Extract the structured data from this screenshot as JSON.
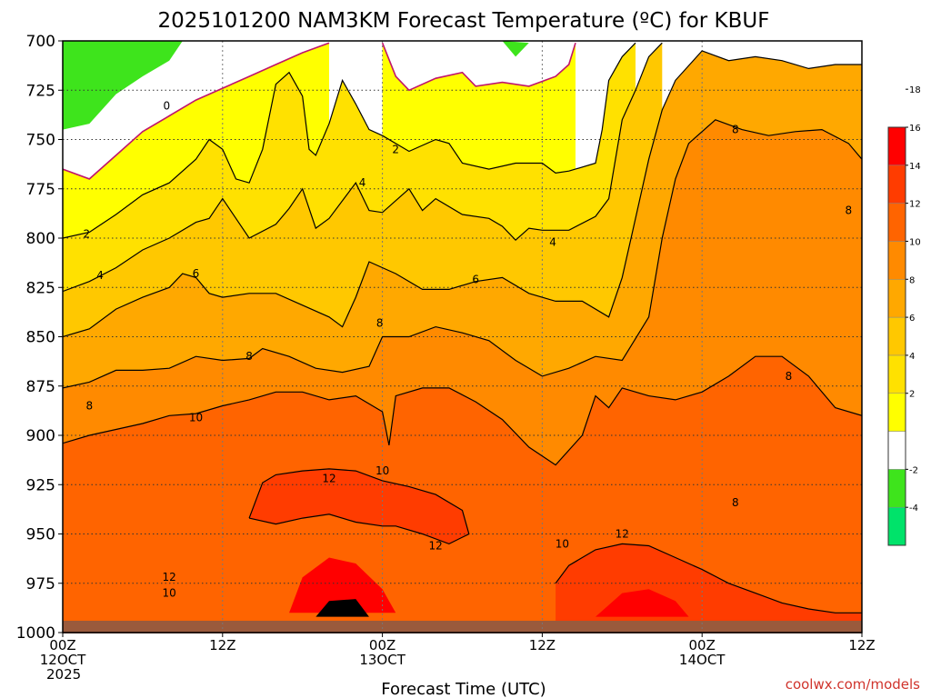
{
  "colors": {
    "bands": [
      "#00e36a",
      "#3ee41c",
      "#ffffff",
      "#ffff00",
      "#ffe100",
      "#ffc800",
      "#ffa800",
      "#ff8a00",
      "#ff6400",
      "#ff3c00",
      "#ff0000"
    ],
    "ground": "#9a5a3c",
    "zero_line": "#c0146c",
    "credit": "#d0342c"
  },
  "chart_data": {
    "type": "heatmap",
    "title": "2025101200 NAM3KM Forecast Temperature (ºC) for KBUF",
    "xlabel": "Forecast Time (UTC)",
    "ylabel": "",
    "credit": "coolwx.com/models",
    "x_range": [
      0,
      60
    ],
    "y_range": [
      700,
      1000
    ],
    "y_axis": "pressure (hPa), increasing downward",
    "grid": true,
    "y_ticks": [
      "700",
      "725",
      "750",
      "775",
      "800",
      "825",
      "850",
      "875",
      "900",
      "925",
      "950",
      "975",
      "1000"
    ],
    "x_ticks": [
      {
        "hour": 0,
        "lines": [
          "00Z",
          "12OCT",
          "2025"
        ]
      },
      {
        "hour": 12,
        "lines": [
          "12Z"
        ]
      },
      {
        "hour": 24,
        "lines": [
          "00Z",
          "13OCT"
        ]
      },
      {
        "hour": 36,
        "lines": [
          "12Z"
        ]
      },
      {
        "hour": 48,
        "lines": [
          "00Z",
          "14OCT"
        ]
      },
      {
        "hour": 60,
        "lines": [
          "12Z"
        ]
      }
    ],
    "colorbar": {
      "levels": [
        -6,
        -4,
        -2,
        0,
        2,
        4,
        6,
        8,
        10,
        12,
        14,
        16,
        18,
        20
      ],
      "tick_labels": [
        "-4",
        "-2",
        "2",
        "4",
        "6",
        "8",
        "10",
        "12",
        "14",
        "16",
        "18"
      ]
    },
    "contours": [
      {
        "level": 0,
        "points": [
          [
            0,
            765
          ],
          [
            2,
            770
          ],
          [
            4,
            758
          ],
          [
            6,
            746
          ],
          [
            8,
            738
          ],
          [
            10,
            730
          ],
          [
            12,
            724
          ],
          [
            14,
            718
          ],
          [
            16,
            712
          ],
          [
            18,
            706
          ],
          [
            20,
            701
          ]
        ]
      },
      {
        "level": 0,
        "points": [
          [
            24,
            701
          ],
          [
            25,
            718
          ],
          [
            26,
            725
          ],
          [
            28,
            719
          ],
          [
            30,
            716
          ],
          [
            31,
            723
          ],
          [
            33,
            721
          ],
          [
            35,
            723
          ],
          [
            37,
            718
          ],
          [
            38,
            712
          ],
          [
            38.5,
            701
          ]
        ]
      },
      {
        "level": 2,
        "points": [
          [
            0,
            800
          ],
          [
            2,
            797
          ],
          [
            4,
            788
          ],
          [
            6,
            778
          ],
          [
            8,
            772
          ],
          [
            10,
            760
          ],
          [
            11,
            750
          ],
          [
            12,
            755
          ],
          [
            13,
            770
          ],
          [
            14,
            772
          ],
          [
            15,
            755
          ],
          [
            16,
            722
          ],
          [
            17,
            716
          ],
          [
            18,
            728
          ],
          [
            18.5,
            755
          ],
          [
            19,
            758
          ],
          [
            20,
            742
          ],
          [
            21,
            720
          ],
          [
            22,
            732
          ],
          [
            23,
            745
          ],
          [
            24,
            748
          ],
          [
            26,
            756
          ],
          [
            28,
            750
          ],
          [
            29,
            752
          ],
          [
            30,
            762
          ],
          [
            32,
            765
          ],
          [
            34,
            762
          ],
          [
            36,
            762
          ],
          [
            37,
            767
          ],
          [
            38,
            766
          ],
          [
            40,
            762
          ],
          [
            40.5,
            745
          ],
          [
            41,
            720
          ],
          [
            42,
            708
          ],
          [
            43,
            701
          ]
        ]
      },
      {
        "level": 4,
        "points": [
          [
            0,
            827
          ],
          [
            2,
            822
          ],
          [
            4,
            815
          ],
          [
            6,
            806
          ],
          [
            8,
            800
          ],
          [
            10,
            792
          ],
          [
            11,
            790
          ],
          [
            12,
            780
          ],
          [
            13,
            790
          ],
          [
            14,
            800
          ],
          [
            16,
            793
          ],
          [
            17,
            785
          ],
          [
            18,
            775
          ],
          [
            19,
            795
          ],
          [
            20,
            790
          ],
          [
            22,
            772
          ],
          [
            23,
            786
          ],
          [
            24,
            787
          ],
          [
            26,
            775
          ],
          [
            27,
            786
          ],
          [
            28,
            780
          ],
          [
            30,
            788
          ],
          [
            32,
            790
          ],
          [
            33,
            794
          ],
          [
            34,
            801
          ],
          [
            35,
            795
          ],
          [
            36,
            796
          ],
          [
            38,
            796
          ],
          [
            40,
            789
          ],
          [
            41,
            780
          ],
          [
            42,
            740
          ],
          [
            43,
            725
          ],
          [
            44,
            708
          ],
          [
            45,
            701
          ]
        ]
      },
      {
        "level": 6,
        "points": [
          [
            0,
            850
          ],
          [
            2,
            846
          ],
          [
            4,
            836
          ],
          [
            6,
            830
          ],
          [
            8,
            825
          ],
          [
            9,
            818
          ],
          [
            10,
            820
          ],
          [
            11,
            828
          ],
          [
            12,
            830
          ],
          [
            14,
            828
          ],
          [
            16,
            828
          ],
          [
            18,
            834
          ],
          [
            20,
            840
          ],
          [
            21,
            845
          ],
          [
            22,
            830
          ],
          [
            23,
            812
          ],
          [
            25,
            818
          ],
          [
            27,
            826
          ],
          [
            29,
            826
          ],
          [
            31,
            822
          ],
          [
            33,
            820
          ],
          [
            35,
            828
          ],
          [
            37,
            832
          ],
          [
            39,
            832
          ],
          [
            41,
            840
          ],
          [
            42,
            820
          ],
          [
            43,
            790
          ],
          [
            44,
            760
          ],
          [
            45,
            735
          ],
          [
            46,
            720
          ],
          [
            48,
            705
          ],
          [
            50,
            710
          ],
          [
            52,
            708
          ],
          [
            54,
            710
          ],
          [
            56,
            714
          ],
          [
            58,
            712
          ],
          [
            60,
            712
          ]
        ]
      },
      {
        "level": 8,
        "points": [
          [
            0,
            876
          ],
          [
            2,
            873
          ],
          [
            4,
            867
          ],
          [
            6,
            867
          ],
          [
            8,
            866
          ],
          [
            10,
            860
          ],
          [
            12,
            862
          ],
          [
            14,
            861
          ],
          [
            15,
            856
          ],
          [
            17,
            860
          ],
          [
            19,
            866
          ],
          [
            21,
            868
          ],
          [
            23,
            865
          ],
          [
            24,
            850
          ],
          [
            26,
            850
          ],
          [
            28,
            845
          ],
          [
            30,
            848
          ],
          [
            32,
            852
          ],
          [
            34,
            862
          ],
          [
            36,
            870
          ],
          [
            38,
            866
          ],
          [
            40,
            860
          ],
          [
            42,
            862
          ],
          [
            44,
            840
          ],
          [
            45,
            800
          ],
          [
            46,
            770
          ],
          [
            47,
            752
          ],
          [
            49,
            740
          ],
          [
            51,
            745
          ],
          [
            53,
            748
          ],
          [
            55,
            746
          ],
          [
            57,
            745
          ],
          [
            59,
            752
          ],
          [
            60,
            760
          ]
        ]
      },
      {
        "level": 10,
        "points": [
          [
            0,
            904
          ],
          [
            2,
            900
          ],
          [
            4,
            897
          ],
          [
            6,
            894
          ],
          [
            8,
            890
          ],
          [
            10,
            889
          ],
          [
            12,
            885
          ],
          [
            14,
            882
          ],
          [
            16,
            878
          ],
          [
            18,
            878
          ],
          [
            20,
            882
          ],
          [
            22,
            880
          ],
          [
            24,
            888
          ],
          [
            24.5,
            905
          ],
          [
            25,
            880
          ],
          [
            27,
            876
          ],
          [
            29,
            876
          ],
          [
            31,
            883
          ],
          [
            33,
            892
          ],
          [
            35,
            906
          ],
          [
            37,
            915
          ],
          [
            39,
            900
          ],
          [
            40,
            880
          ],
          [
            41,
            886
          ],
          [
            42,
            876
          ],
          [
            44,
            880
          ],
          [
            46,
            882
          ],
          [
            48,
            878
          ],
          [
            50,
            870
          ],
          [
            52,
            860
          ],
          [
            54,
            860
          ],
          [
            56,
            870
          ],
          [
            58,
            886
          ],
          [
            60,
            890
          ]
        ]
      },
      {
        "level": 12,
        "points": [
          [
            14,
            942
          ],
          [
            15,
            924
          ],
          [
            16,
            920
          ],
          [
            18,
            918
          ],
          [
            20,
            917
          ],
          [
            22,
            918
          ],
          [
            24,
            923
          ],
          [
            26,
            926
          ],
          [
            28,
            930
          ],
          [
            30,
            938
          ],
          [
            30.5,
            950
          ],
          [
            29,
            955
          ],
          [
            27,
            950
          ],
          [
            25,
            946
          ],
          [
            24,
            946
          ],
          [
            22,
            944
          ],
          [
            20,
            940
          ],
          [
            18,
            942
          ],
          [
            16,
            945
          ],
          [
            14,
            942
          ]
        ]
      },
      {
        "level": 12,
        "points": [
          [
            37,
            975
          ],
          [
            38,
            966
          ],
          [
            40,
            958
          ],
          [
            42,
            955
          ],
          [
            44,
            956
          ],
          [
            46,
            962
          ],
          [
            48,
            968
          ],
          [
            50,
            975
          ],
          [
            52,
            980
          ],
          [
            54,
            985
          ],
          [
            56,
            988
          ],
          [
            58,
            990
          ],
          [
            60,
            990
          ]
        ]
      }
    ],
    "annotations": [
      {
        "text": "0",
        "x": 7.8,
        "y": 733
      },
      {
        "text": "2",
        "x": 25,
        "y": 755
      },
      {
        "text": "2",
        "x": 1.8,
        "y": 798
      },
      {
        "text": "4",
        "x": 22.5,
        "y": 772
      },
      {
        "text": "4",
        "x": 36.8,
        "y": 802
      },
      {
        "text": "4",
        "x": 2.8,
        "y": 819
      },
      {
        "text": "6",
        "x": 10,
        "y": 818
      },
      {
        "text": "6",
        "x": 31,
        "y": 821
      },
      {
        "text": "8",
        "x": 50.5,
        "y": 745
      },
      {
        "text": "8",
        "x": 59,
        "y": 786
      },
      {
        "text": "8",
        "x": 23.8,
        "y": 843
      },
      {
        "text": "8",
        "x": 14,
        "y": 860
      },
      {
        "text": "8",
        "x": 54.5,
        "y": 870
      },
      {
        "text": "8",
        "x": 2,
        "y": 885
      },
      {
        "text": "8",
        "x": 50.5,
        "y": 934
      },
      {
        "text": "10",
        "x": 10,
        "y": 891
      },
      {
        "text": "10",
        "x": 24,
        "y": 918
      },
      {
        "text": "10",
        "x": 37.5,
        "y": 955
      },
      {
        "text": "10",
        "x": 8,
        "y": 980
      },
      {
        "text": "12",
        "x": 20,
        "y": 922
      },
      {
        "text": "12",
        "x": 28,
        "y": 956
      },
      {
        "text": "12",
        "x": 42,
        "y": 950
      },
      {
        "text": "12",
        "x": 8,
        "y": 972
      }
    ]
  }
}
